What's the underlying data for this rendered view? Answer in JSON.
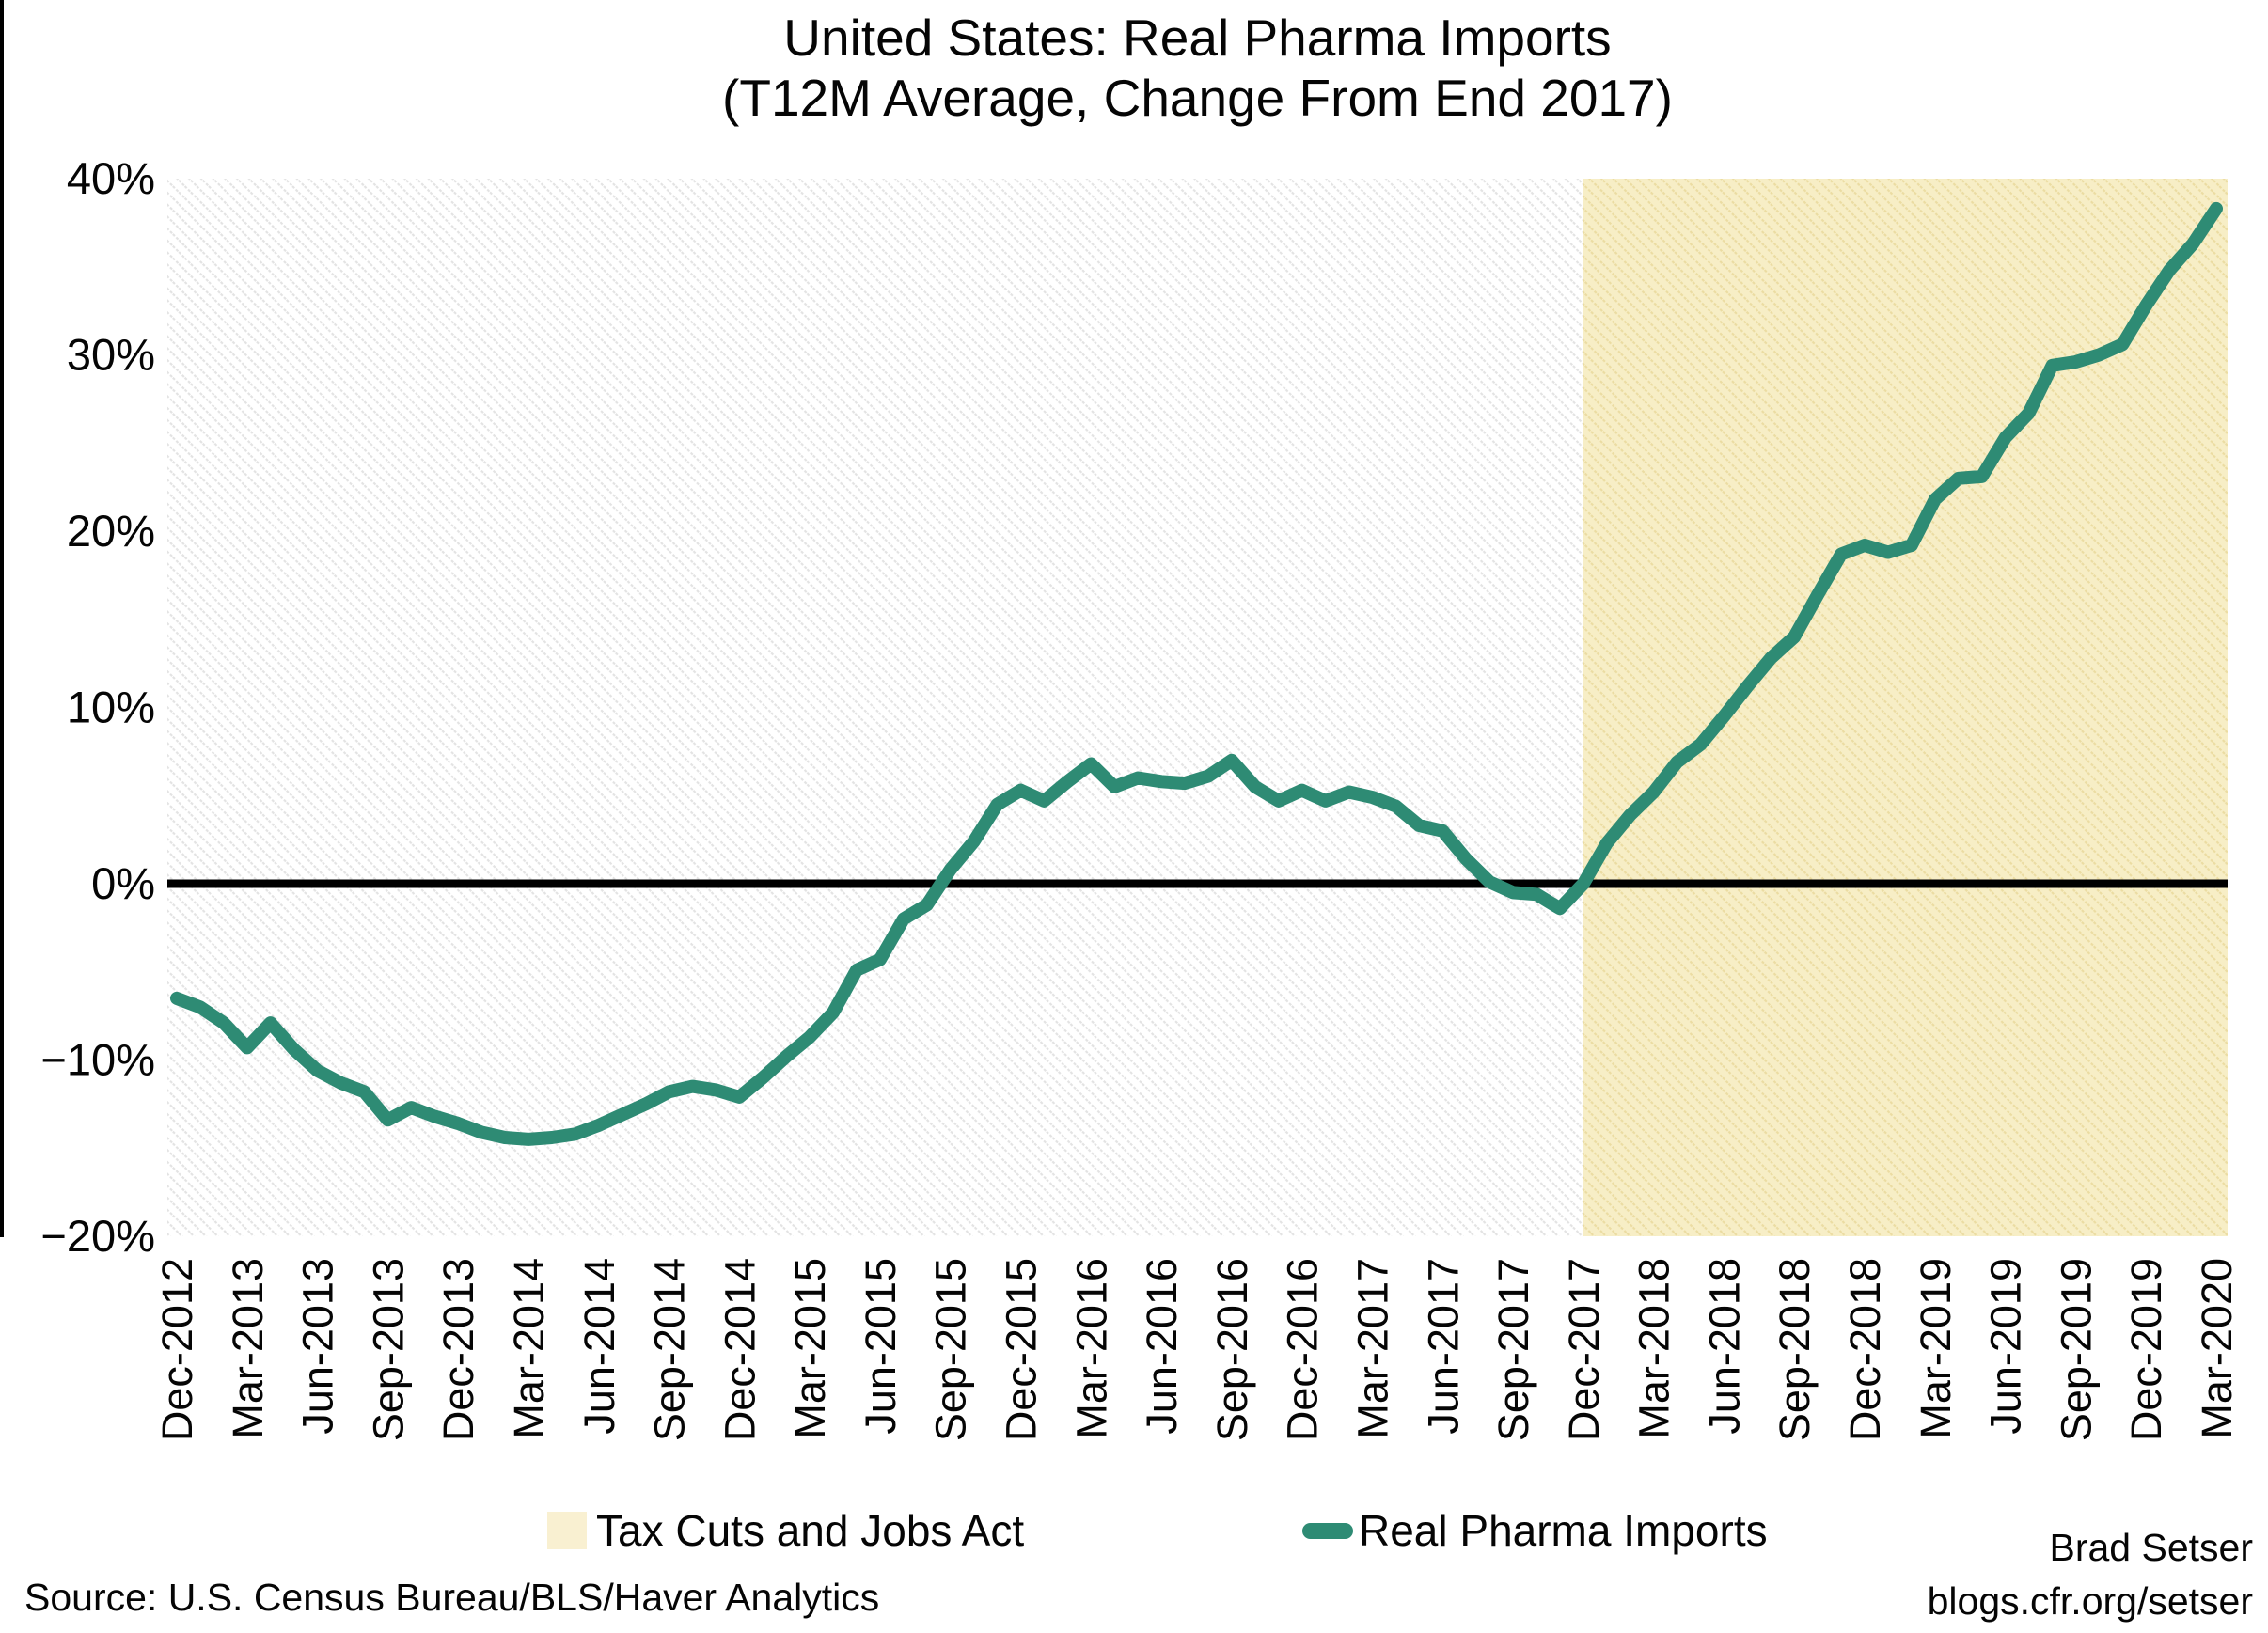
{
  "title": {
    "line1": "United States: Real Pharma Imports",
    "line2": "(T12M Average, Change From End 2017)"
  },
  "y_axis": {
    "labels": [
      "40%",
      "30%",
      "20%",
      "10%",
      "0%",
      "−10%",
      "−20%"
    ],
    "max": 40,
    "min": -20,
    "step": 10
  },
  "x_axis": {
    "tick_every": 3,
    "first_label": "Dec-2012",
    "last_label": "Mar-2020"
  },
  "legend": {
    "items": [
      {
        "label": "Tax Cuts and Jobs Act",
        "swatch": "shaded-band",
        "color": "#F7EEC6"
      },
      {
        "label": "Real Pharma Imports",
        "swatch": "line",
        "color": "#2E8B74"
      }
    ]
  },
  "footer": {
    "source": "Source: U.S. Census Bureau/BLS/Haver Analytics",
    "author": "Brad Setser",
    "site": "blogs.cfr.org/setser"
  },
  "colors": {
    "line": "#2E8B74",
    "band_fill": "#F7EEC6",
    "band_stripe": "#EBDCA2",
    "plot_hatch": "#E3E3E3",
    "axis": "#000000",
    "text": "#050505"
  },
  "chart_data": {
    "type": "line",
    "title": "United States: Real Pharma Imports (T12M Average, Change From End 2017)",
    "xlabel": "",
    "ylabel": "",
    "ylim": [
      -20,
      40
    ],
    "gridlines": false,
    "legend_position": "bottom",
    "shaded_region": {
      "label": "Tax Cuts and Jobs Act",
      "from": "Dec-2017",
      "to": "Mar-2020",
      "from_index": 60,
      "color": "#F7EEC6"
    },
    "x": [
      "Dec-2012",
      "Jan-2013",
      "Feb-2013",
      "Mar-2013",
      "Apr-2013",
      "May-2013",
      "Jun-2013",
      "Jul-2013",
      "Aug-2013",
      "Sep-2013",
      "Oct-2013",
      "Nov-2013",
      "Dec-2013",
      "Jan-2014",
      "Feb-2014",
      "Mar-2014",
      "Apr-2014",
      "May-2014",
      "Jun-2014",
      "Jul-2014",
      "Aug-2014",
      "Sep-2014",
      "Oct-2014",
      "Nov-2014",
      "Dec-2014",
      "Jan-2015",
      "Feb-2015",
      "Mar-2015",
      "Apr-2015",
      "May-2015",
      "Jun-2015",
      "Jul-2015",
      "Aug-2015",
      "Sep-2015",
      "Oct-2015",
      "Nov-2015",
      "Dec-2015",
      "Jan-2016",
      "Feb-2016",
      "Mar-2016",
      "Apr-2016",
      "May-2016",
      "Jun-2016",
      "Jul-2016",
      "Aug-2016",
      "Sep-2016",
      "Oct-2016",
      "Nov-2016",
      "Dec-2016",
      "Jan-2017",
      "Feb-2017",
      "Mar-2017",
      "Apr-2017",
      "May-2017",
      "Jun-2017",
      "Jul-2017",
      "Aug-2017",
      "Sep-2017",
      "Oct-2017",
      "Nov-2017",
      "Dec-2017",
      "Jan-2018",
      "Feb-2018",
      "Mar-2018",
      "Apr-2018",
      "May-2018",
      "Jun-2018",
      "Jul-2018",
      "Aug-2018",
      "Sep-2018",
      "Oct-2018",
      "Nov-2018",
      "Dec-2018",
      "Jan-2019",
      "Feb-2019",
      "Mar-2019",
      "Apr-2019",
      "May-2019",
      "Jun-2019",
      "Jul-2019",
      "Aug-2019",
      "Sep-2019",
      "Oct-2019",
      "Nov-2019",
      "Dec-2019",
      "Jan-2020",
      "Feb-2020",
      "Mar-2020"
    ],
    "series": [
      {
        "name": "Real Pharma Imports",
        "color": "#2E8B74",
        "values": [
          -6.5,
          -7.0,
          -7.9,
          -9.3,
          -7.9,
          -9.4,
          -10.6,
          -11.3,
          -11.8,
          -13.4,
          -12.7,
          -13.2,
          -13.6,
          -14.1,
          -14.4,
          -14.5,
          -14.4,
          -14.2,
          -13.7,
          -13.1,
          -12.5,
          -11.8,
          -11.5,
          -11.7,
          -12.1,
          -11.0,
          -9.8,
          -8.7,
          -7.3,
          -4.9,
          -4.3,
          -2.0,
          -1.2,
          0.8,
          2.4,
          4.5,
          5.3,
          4.7,
          5.8,
          6.8,
          5.5,
          6.0,
          5.8,
          5.7,
          6.1,
          7.0,
          5.5,
          4.7,
          5.3,
          4.7,
          5.2,
          4.9,
          4.4,
          3.3,
          3.0,
          1.4,
          0.1,
          -0.5,
          -0.6,
          -1.4,
          0.0,
          2.3,
          3.9,
          5.2,
          6.9,
          7.9,
          9.5,
          11.2,
          12.8,
          14.0,
          16.4,
          18.7,
          19.2,
          18.8,
          19.2,
          21.8,
          23.0,
          23.1,
          25.3,
          26.7,
          29.4,
          29.6,
          30.0,
          30.6,
          32.8,
          34.8,
          36.3,
          38.3
        ]
      }
    ]
  }
}
